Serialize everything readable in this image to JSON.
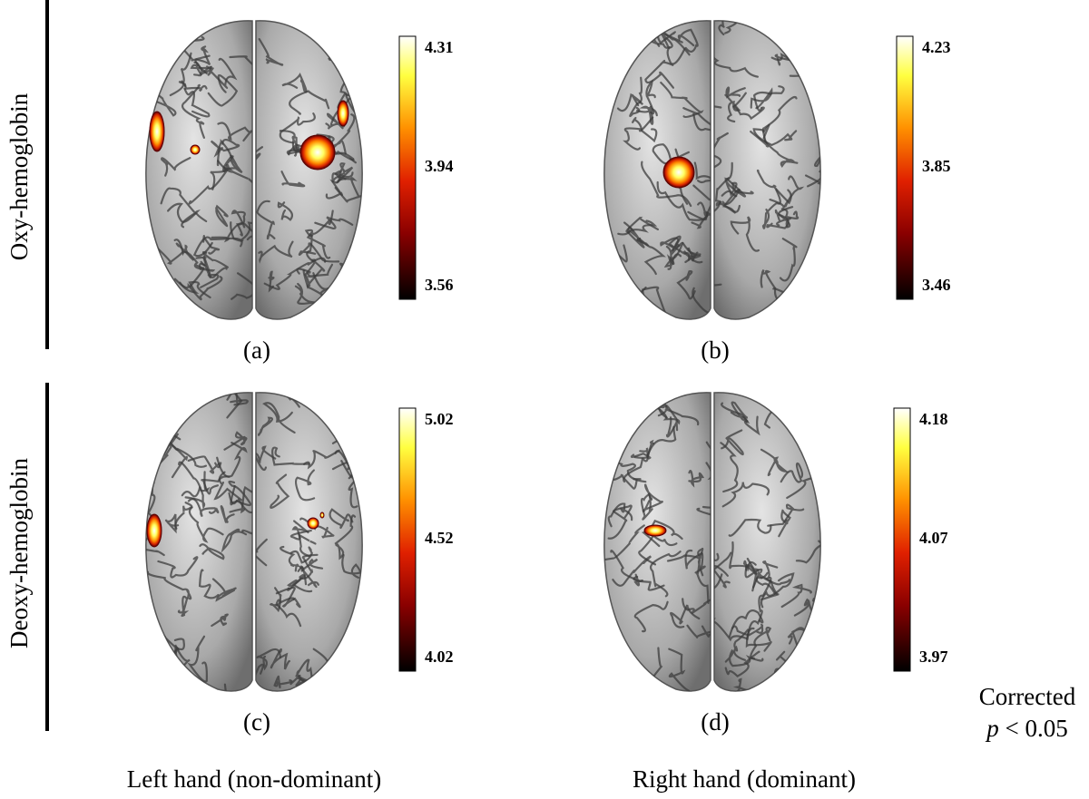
{
  "row_labels": [
    "Oxy-hemoglobin",
    "Deoxy-hemoglobin"
  ],
  "panels": [
    {
      "label": "(a)",
      "colorbar": [
        "4.31",
        "3.94",
        "3.56"
      ]
    },
    {
      "label": "(b)",
      "colorbar": [
        "4.23",
        "3.85",
        "3.46"
      ]
    },
    {
      "label": "(c)",
      "colorbar": [
        "5.02",
        "4.52",
        "4.02"
      ]
    },
    {
      "label": "(d)",
      "colorbar": [
        "4.18",
        "4.07",
        "3.97"
      ]
    }
  ],
  "column_labels": [
    "Left hand (non-dominant)",
    "Right hand (dominant)"
  ],
  "note": {
    "line1": "Corrected",
    "italic": "p",
    "rest": "< 0.05"
  }
}
